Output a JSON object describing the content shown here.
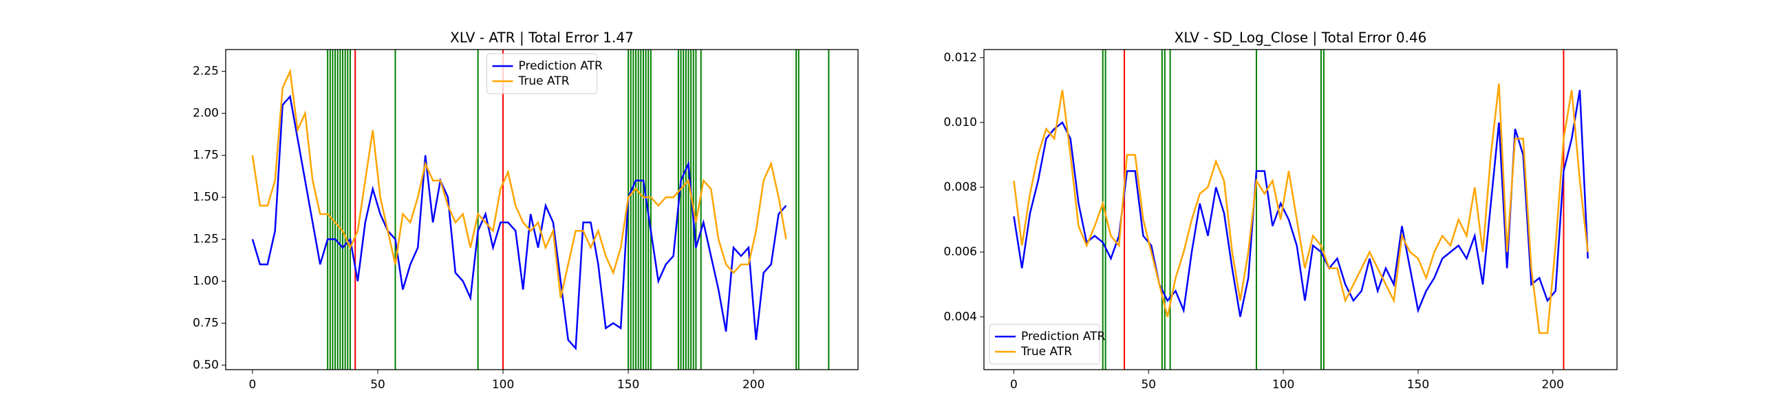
{
  "chart_data": [
    {
      "type": "line",
      "title": "XLV - ATR | Total Error 1.47",
      "x": [
        0,
        3,
        6,
        9,
        12,
        15,
        18,
        21,
        24,
        27,
        30,
        33,
        36,
        39,
        42,
        45,
        48,
        51,
        54,
        57,
        60,
        63,
        66,
        69,
        72,
        75,
        78,
        81,
        84,
        87,
        90,
        93,
        96,
        99,
        102,
        105,
        108,
        111,
        114,
        117,
        120,
        123,
        126,
        129,
        132,
        135,
        138,
        141,
        144,
        147,
        150,
        153,
        156,
        159,
        162,
        165,
        168,
        171,
        174,
        177,
        180,
        183,
        186,
        189,
        192,
        195,
        198,
        201,
        204,
        207,
        210,
        213
      ],
      "series": [
        {
          "name": "Prediction ATR",
          "color": "#0000ff",
          "values": [
            1.25,
            1.1,
            1.1,
            1.3,
            2.05,
            2.1,
            1.85,
            1.6,
            1.35,
            1.1,
            1.25,
            1.25,
            1.2,
            1.25,
            1.0,
            1.35,
            1.55,
            1.4,
            1.3,
            1.25,
            0.95,
            1.1,
            1.2,
            1.75,
            1.35,
            1.6,
            1.5,
            1.05,
            1.0,
            0.9,
            1.3,
            1.4,
            1.2,
            1.35,
            1.35,
            1.3,
            0.95,
            1.4,
            1.2,
            1.45,
            1.35,
            1.0,
            0.65,
            0.6,
            1.35,
            1.35,
            1.1,
            0.72,
            0.75,
            0.72,
            1.5,
            1.6,
            1.6,
            1.3,
            1.0,
            1.1,
            1.15,
            1.6,
            1.7,
            1.2,
            1.35,
            1.15,
            0.95,
            0.7,
            1.2,
            1.15,
            1.2,
            0.65,
            1.05,
            1.1,
            1.4,
            1.45
          ]
        },
        {
          "name": "True ATR",
          "color": "#ffa500",
          "values": [
            1.75,
            1.45,
            1.45,
            1.6,
            2.15,
            2.25,
            1.9,
            2.0,
            1.6,
            1.4,
            1.4,
            1.35,
            1.3,
            1.2,
            1.3,
            1.6,
            1.9,
            1.5,
            1.3,
            1.1,
            1.4,
            1.35,
            1.5,
            1.7,
            1.6,
            1.6,
            1.45,
            1.35,
            1.4,
            1.2,
            1.4,
            1.35,
            1.3,
            1.55,
            1.65,
            1.45,
            1.35,
            1.3,
            1.35,
            1.2,
            1.3,
            0.9,
            1.1,
            1.3,
            1.3,
            1.2,
            1.3,
            1.15,
            1.05,
            1.2,
            1.5,
            1.55,
            1.5,
            1.5,
            1.45,
            1.5,
            1.5,
            1.55,
            1.6,
            1.35,
            1.6,
            1.55,
            1.25,
            1.1,
            1.05,
            1.1,
            1.1,
            1.3,
            1.6,
            1.7,
            1.5,
            1.25
          ]
        }
      ],
      "vlines": [
        {
          "x": 30,
          "color": "green"
        },
        {
          "x": 31,
          "color": "green"
        },
        {
          "x": 32,
          "color": "green"
        },
        {
          "x": 33,
          "color": "green"
        },
        {
          "x": 34,
          "color": "green"
        },
        {
          "x": 35,
          "color": "green"
        },
        {
          "x": 36,
          "color": "green"
        },
        {
          "x": 37,
          "color": "green"
        },
        {
          "x": 38,
          "color": "green"
        },
        {
          "x": 39,
          "color": "green"
        },
        {
          "x": 41,
          "color": "red"
        },
        {
          "x": 57,
          "color": "green"
        },
        {
          "x": 90,
          "color": "green"
        },
        {
          "x": 100,
          "color": "red"
        },
        {
          "x": 150,
          "color": "green"
        },
        {
          "x": 151,
          "color": "green"
        },
        {
          "x": 152,
          "color": "green"
        },
        {
          "x": 153,
          "color": "green"
        },
        {
          "x": 154,
          "color": "green"
        },
        {
          "x": 155,
          "color": "green"
        },
        {
          "x": 156,
          "color": "green"
        },
        {
          "x": 157,
          "color": "green"
        },
        {
          "x": 158,
          "color": "green"
        },
        {
          "x": 159,
          "color": "green"
        },
        {
          "x": 170,
          "color": "green"
        },
        {
          "x": 171,
          "color": "green"
        },
        {
          "x": 172,
          "color": "green"
        },
        {
          "x": 173,
          "color": "green"
        },
        {
          "x": 174,
          "color": "green"
        },
        {
          "x": 175,
          "color": "green"
        },
        {
          "x": 176,
          "color": "green"
        },
        {
          "x": 177,
          "color": "green"
        },
        {
          "x": 179,
          "color": "green"
        },
        {
          "x": 217,
          "color": "green"
        },
        {
          "x": 218,
          "color": "green"
        },
        {
          "x": 230,
          "color": "green"
        }
      ],
      "xlim": [
        -10.7,
        241.7
      ],
      "xticks": [
        0,
        50,
        100,
        150,
        200
      ],
      "ylim": [
        0.473,
        2.38
      ],
      "yticks": [
        {
          "value": 0.5,
          "label": "0.50"
        },
        0.75,
        {
          "value": 1.0,
          "label": "1.00"
        },
        1.25,
        {
          "value": 1.5,
          "label": "1.50"
        },
        1.75,
        {
          "value": 2.0,
          "label": "2.00"
        },
        2.25
      ],
      "legend": "upper center"
    },
    {
      "type": "line",
      "title": "XLV - SD_Log_Close | Total Error 0.46",
      "x": [
        0,
        3,
        6,
        9,
        12,
        15,
        18,
        21,
        24,
        27,
        30,
        33,
        36,
        39,
        42,
        45,
        48,
        51,
        54,
        57,
        60,
        63,
        66,
        69,
        72,
        75,
        78,
        81,
        84,
        87,
        90,
        93,
        96,
        99,
        102,
        105,
        108,
        111,
        114,
        117,
        120,
        123,
        126,
        129,
        132,
        135,
        138,
        141,
        144,
        147,
        150,
        153,
        156,
        159,
        162,
        165,
        168,
        171,
        174,
        177,
        180,
        183,
        186,
        189,
        192,
        195,
        198,
        201,
        204,
        207,
        210,
        213
      ],
      "series": [
        {
          "name": "Prediction ATR",
          "color": "#0000ff",
          "values": [
            0.0071,
            0.0055,
            0.0072,
            0.0082,
            0.0095,
            0.0098,
            0.01,
            0.0095,
            0.0075,
            0.0063,
            0.0065,
            0.0063,
            0.0058,
            0.0065,
            0.0085,
            0.0085,
            0.0065,
            0.0062,
            0.005,
            0.0045,
            0.0048,
            0.0042,
            0.006,
            0.0075,
            0.0065,
            0.008,
            0.0072,
            0.0055,
            0.004,
            0.0052,
            0.0085,
            0.0085,
            0.0068,
            0.0075,
            0.007,
            0.0062,
            0.0045,
            0.0062,
            0.006,
            0.0055,
            0.0058,
            0.005,
            0.0045,
            0.0048,
            0.0058,
            0.0048,
            0.0055,
            0.005,
            0.0068,
            0.0055,
            0.0042,
            0.0048,
            0.0052,
            0.0058,
            0.006,
            0.0062,
            0.0058,
            0.0065,
            0.005,
            0.0075,
            0.01,
            0.0055,
            0.0098,
            0.009,
            0.005,
            0.0052,
            0.0045,
            0.0048,
            0.0085,
            0.0095,
            0.011,
            0.0058
          ]
        },
        {
          "name": "True ATR",
          "color": "#ffa500",
          "values": [
            0.0082,
            0.0062,
            0.0078,
            0.009,
            0.0098,
            0.0095,
            0.011,
            0.009,
            0.0068,
            0.0062,
            0.0068,
            0.0075,
            0.0065,
            0.0062,
            0.009,
            0.009,
            0.007,
            0.006,
            0.005,
            0.004,
            0.0052,
            0.006,
            0.007,
            0.0078,
            0.008,
            0.0088,
            0.0082,
            0.006,
            0.0045,
            0.006,
            0.0082,
            0.0078,
            0.0082,
            0.007,
            0.0085,
            0.007,
            0.0055,
            0.0065,
            0.0062,
            0.0055,
            0.0055,
            0.0045,
            0.005,
            0.0055,
            0.006,
            0.0055,
            0.005,
            0.0045,
            0.0065,
            0.006,
            0.0058,
            0.0052,
            0.006,
            0.0065,
            0.0062,
            0.007,
            0.0065,
            0.008,
            0.006,
            0.009,
            0.0112,
            0.006,
            0.0095,
            0.0095,
            0.0055,
            0.0035,
            0.0035,
            0.0062,
            0.0095,
            0.011,
            0.0082,
            0.006
          ]
        }
      ],
      "vlines": [
        {
          "x": 33,
          "color": "green"
        },
        {
          "x": 34,
          "color": "green"
        },
        {
          "x": 41,
          "color": "red"
        },
        {
          "x": 55,
          "color": "green"
        },
        {
          "x": 56,
          "color": "green"
        },
        {
          "x": 58,
          "color": "green"
        },
        {
          "x": 90,
          "color": "green"
        },
        {
          "x": 114,
          "color": "green"
        },
        {
          "x": 115,
          "color": "green"
        },
        {
          "x": 204,
          "color": "red"
        }
      ],
      "xlim": [
        -11.1,
        223.8
      ],
      "xticks": [
        0,
        50,
        100,
        150,
        200
      ],
      "ylim": [
        0.00237,
        0.01225
      ],
      "yticks": [
        0.004,
        0.006,
        0.008,
        {
          "value": 0.01,
          "label": "0.010"
        },
        0.012
      ],
      "legend": "lower left"
    }
  ]
}
